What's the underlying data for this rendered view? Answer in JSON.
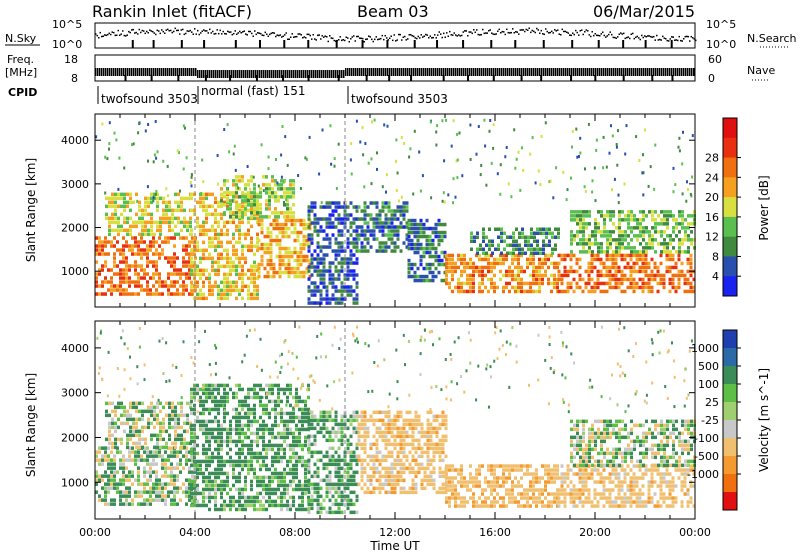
{
  "header": {
    "title": "Rankin Inlet (fitACF)",
    "beam": "Beam 03",
    "date": "06/Mar/2015"
  },
  "noise_panel": {
    "left_label": "N.Sky",
    "right_label": "N.Search",
    "left_ticks": [
      "10^5",
      "10^0"
    ],
    "right_ticks": [
      "10^5",
      "10^0"
    ],
    "log_range": [
      0,
      5
    ]
  },
  "freq_panel": {
    "left_label_1": "Freq.",
    "left_label_2": "[MHz]",
    "right_label": "Nave",
    "left_ticks": [
      "18",
      "8"
    ],
    "right_ticks": [
      "60",
      "0"
    ],
    "freq_range_mhz": [
      8,
      18
    ],
    "nave_range": [
      0,
      60
    ]
  },
  "cpid": {
    "label": "CPID",
    "segments": [
      {
        "start_h": 0.0,
        "end_h": 4.0,
        "name": "twofsound 3503"
      },
      {
        "start_h": 4.0,
        "end_h": 10.0,
        "name": "normal (fast) 151"
      },
      {
        "start_h": 10.0,
        "end_h": 24.0,
        "name": "twofsound 3503"
      }
    ]
  },
  "chart_data": [
    {
      "type": "heatmap",
      "title": "Power",
      "xlabel": "Time UT",
      "ylabel": "Slant Range [km]",
      "xlim": [
        0,
        24
      ],
      "ylim": [
        180,
        4600
      ],
      "x_tick_labels": [
        "00:00",
        "04:00",
        "08:00",
        "12:00",
        "16:00",
        "20:00",
        "00:00"
      ],
      "y_ticks": [
        1000,
        2000,
        3000,
        4000
      ],
      "colorbar": {
        "label": "Power [dB]",
        "ticks": [
          "4",
          "8",
          "12",
          "16",
          "20",
          "24",
          "28"
        ],
        "colors": [
          "#1a22f0",
          "#2a4fae",
          "#3f8a3e",
          "#5bbf4f",
          "#d7e040",
          "#f5a020",
          "#f07010",
          "#e83010",
          "#e01010"
        ]
      },
      "regions": [
        {
          "t": [
            0.0,
            4.0
          ],
          "r": [
            500,
            1800
          ],
          "value": 26
        },
        {
          "t": [
            0.4,
            3.8
          ],
          "r": [
            1800,
            2800
          ],
          "value": 18
        },
        {
          "t": [
            3.8,
            6.5
          ],
          "r": [
            400,
            2800
          ],
          "value": 20
        },
        {
          "t": [
            5.0,
            8.0
          ],
          "r": [
            2200,
            3200
          ],
          "value": 16
        },
        {
          "t": [
            6.5,
            8.6
          ],
          "r": [
            900,
            2200
          ],
          "value": 22
        },
        {
          "t": [
            8.5,
            10.5
          ],
          "r": [
            300,
            2600
          ],
          "value": 6
        },
        {
          "t": [
            10.5,
            12.5
          ],
          "r": [
            1500,
            2600
          ],
          "value": 8
        },
        {
          "t": [
            12.5,
            14.0
          ],
          "r": [
            800,
            2200
          ],
          "value": 8
        },
        {
          "t": [
            14.0,
            18.5
          ],
          "r": [
            500,
            1400
          ],
          "value": 24
        },
        {
          "t": [
            15.0,
            18.5
          ],
          "r": [
            1400,
            2000
          ],
          "value": 10
        },
        {
          "t": [
            18.5,
            24.0
          ],
          "r": [
            500,
            1400
          ],
          "value": 26
        },
        {
          "t": [
            19.0,
            24.0
          ],
          "r": [
            1400,
            2400
          ],
          "value": 14
        }
      ]
    },
    {
      "type": "heatmap",
      "title": "Velocity",
      "xlabel": "Time UT",
      "ylabel": "Slant Range [km]",
      "xlim": [
        0,
        24
      ],
      "ylim": [
        180,
        4600
      ],
      "x_tick_labels": [
        "00:00",
        "04:00",
        "08:00",
        "12:00",
        "16:00",
        "20:00",
        "00:00"
      ],
      "y_ticks": [
        1000,
        2000,
        3000,
        4000
      ],
      "colorbar": {
        "label": "Velocity [m s^-1]",
        "ticks": [
          "1000",
          "500",
          "100",
          "25",
          "-25",
          "-100",
          "-500",
          "-1000"
        ],
        "colors": [
          "#1f3fb0",
          "#2a6aa6",
          "#3b8c57",
          "#5dbf45",
          "#9fcf70",
          "#c8c8c8",
          "#f0c070",
          "#f59a30",
          "#f07010",
          "#e01010"
        ]
      },
      "regions": [
        {
          "t": [
            0.0,
            4.0
          ],
          "r": [
            500,
            1800
          ],
          "value": 60
        },
        {
          "t": [
            0.4,
            3.8
          ],
          "r": [
            1800,
            2800
          ],
          "value": 15
        },
        {
          "t": [
            3.8,
            8.5
          ],
          "r": [
            400,
            3200
          ],
          "value": 200
        },
        {
          "t": [
            8.5,
            10.5
          ],
          "r": [
            300,
            2600
          ],
          "value": 150
        },
        {
          "t": [
            10.5,
            14.0
          ],
          "r": [
            800,
            2600
          ],
          "value": -300
        },
        {
          "t": [
            14.0,
            18.5
          ],
          "r": [
            500,
            1400
          ],
          "value": -400
        },
        {
          "t": [
            18.5,
            24.0
          ],
          "r": [
            500,
            1400
          ],
          "value": -300
        },
        {
          "t": [
            19.0,
            24.0
          ],
          "r": [
            1400,
            2400
          ],
          "value": 10
        }
      ]
    }
  ]
}
